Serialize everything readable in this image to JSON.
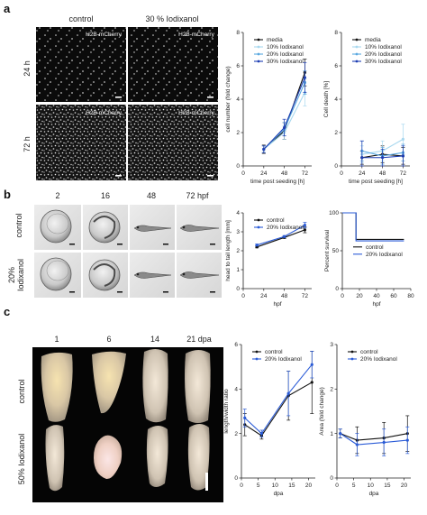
{
  "panels": {
    "a": {
      "letter": "a",
      "col_labels": [
        "control",
        "30 % Iodixanol"
      ],
      "row_labels": [
        "24 h",
        "72 h"
      ],
      "image_label": "H2B-mCherry"
    },
    "b": {
      "letter": "b",
      "col_labels": [
        "2",
        "16",
        "48",
        "72 hpf"
      ],
      "row_labels": [
        "control",
        "20%",
        "Iodixanol"
      ]
    },
    "c": {
      "letter": "c",
      "col_labels": [
        "1",
        "6",
        "14",
        "21 dpa"
      ],
      "row_labels": [
        "control",
        "50% Iodixanol"
      ]
    }
  },
  "chart_data": [
    {
      "id": "a-cell-number",
      "type": "line",
      "title": "",
      "xlabel": "time post seeding [h]",
      "ylabel": "cell number (fold change)",
      "xlim": [
        0,
        80
      ],
      "ylim": [
        0,
        8
      ],
      "xticks": [
        0,
        24,
        48,
        72
      ],
      "yticks": [
        0,
        2,
        4,
        6,
        8
      ],
      "legend": "top-left",
      "x": [
        24,
        48,
        72
      ],
      "series": [
        {
          "name": "media",
          "color": "#111111",
          "values": [
            1.0,
            2.1,
            5.6
          ],
          "err": [
            0.25,
            0.5,
            0.8
          ]
        },
        {
          "name": "10% Iodixanol",
          "color": "#a8d8ef",
          "values": [
            1.0,
            2.0,
            4.4
          ],
          "err": [
            0.2,
            0.4,
            0.8
          ]
        },
        {
          "name": "20% Iodixanol",
          "color": "#5aa8e0",
          "values": [
            1.0,
            2.2,
            5.0
          ],
          "err": [
            0.2,
            0.4,
            0.7
          ]
        },
        {
          "name": "30% Iodixanol",
          "color": "#1f3fb3",
          "values": [
            1.0,
            2.3,
            5.3
          ],
          "err": [
            0.2,
            0.5,
            0.9
          ]
        }
      ]
    },
    {
      "id": "a-cell-death",
      "type": "line",
      "title": "",
      "xlabel": "time post seeding [h]",
      "ylabel": "Cell death [%]",
      "xlim": [
        0,
        80
      ],
      "ylim": [
        0,
        8
      ],
      "xticks": [
        0,
        24,
        48,
        72
      ],
      "yticks": [
        0,
        2,
        4,
        6,
        8
      ],
      "legend": "top-left",
      "x": [
        24,
        48,
        72
      ],
      "series": [
        {
          "name": "media",
          "color": "#111111",
          "values": [
            0.5,
            0.7,
            0.6
          ],
          "err": [
            0.4,
            0.5,
            0.5
          ]
        },
        {
          "name": "10% Iodixanol",
          "color": "#a8d8ef",
          "values": [
            0.7,
            0.9,
            1.6
          ],
          "err": [
            0.5,
            0.6,
            0.9
          ]
        },
        {
          "name": "20% Iodixanol",
          "color": "#5aa8e0",
          "values": [
            0.9,
            0.6,
            0.8
          ],
          "err": [
            0.6,
            0.5,
            0.5
          ]
        },
        {
          "name": "30% Iodixanol",
          "color": "#1f3fb3",
          "values": [
            0.5,
            0.5,
            0.6
          ],
          "err": [
            1.0,
            0.5,
            0.6
          ]
        }
      ]
    },
    {
      "id": "b-length",
      "type": "line",
      "title": "",
      "xlabel": "hpf",
      "ylabel": "head to tail length [mm]",
      "xlim": [
        0,
        80
      ],
      "ylim": [
        0,
        4
      ],
      "xticks": [
        0,
        24,
        48,
        72
      ],
      "yticks": [
        0,
        1,
        2,
        3,
        4
      ],
      "legend": "top-left",
      "x": [
        16,
        48,
        72
      ],
      "series": [
        {
          "name": "control",
          "color": "#111111",
          "values": [
            2.2,
            2.7,
            3.1
          ],
          "err": [
            0.05,
            0.05,
            0.15
          ]
        },
        {
          "name": "20% Iodixanol",
          "color": "#2a5bd7",
          "values": [
            2.3,
            2.75,
            3.35
          ],
          "err": [
            0.05,
            0.05,
            0.15
          ]
        }
      ]
    },
    {
      "id": "b-survival",
      "type": "line",
      "title": "",
      "xlabel": "hpf",
      "ylabel": "Percent survival",
      "xlim": [
        0,
        80
      ],
      "ylim": [
        0,
        100
      ],
      "xticks": [
        0,
        20,
        40,
        60,
        80
      ],
      "yticks": [
        0,
        50,
        100
      ],
      "legend": "center",
      "series": [
        {
          "name": "control",
          "color": "#111111",
          "x": [
            0,
            16,
            16,
            72
          ],
          "values": [
            100,
            100,
            65,
            65
          ]
        },
        {
          "name": "20% Iodixanol",
          "color": "#2a5bd7",
          "x": [
            0,
            16,
            16,
            72
          ],
          "values": [
            100,
            100,
            63,
            63
          ]
        }
      ]
    },
    {
      "id": "c-ratio",
      "type": "line",
      "title": "",
      "xlabel": "dpa",
      "ylabel": "length/width ratio",
      "xlim": [
        0,
        22
      ],
      "ylim": [
        0,
        6
      ],
      "xticks": [
        0,
        5,
        10,
        15,
        20
      ],
      "yticks": [
        0,
        2,
        4,
        6
      ],
      "legend": "top-left",
      "x": [
        1,
        6,
        14,
        21
      ],
      "series": [
        {
          "name": "control",
          "color": "#111111",
          "values": [
            2.4,
            1.9,
            3.7,
            4.3
          ],
          "err": [
            0.5,
            0.15,
            1.1,
            1.4
          ]
        },
        {
          "name": "20% Iodixanol",
          "color": "#2a5bd7",
          "values": [
            2.7,
            2.0,
            3.8,
            5.1
          ],
          "err": [
            0.4,
            0.15,
            1.0,
            0.6
          ]
        }
      ]
    },
    {
      "id": "c-area",
      "type": "line",
      "title": "",
      "xlabel": "dpa",
      "ylabel": "Area (fold change)",
      "xlim": [
        0,
        22
      ],
      "ylim": [
        0,
        3
      ],
      "xticks": [
        0,
        5,
        10,
        15,
        20
      ],
      "yticks": [
        0,
        1,
        2,
        3
      ],
      "legend": "top-left",
      "x": [
        1,
        6,
        14,
        21
      ],
      "series": [
        {
          "name": "control",
          "color": "#111111",
          "values": [
            1.0,
            0.85,
            0.9,
            1.0
          ],
          "err": [
            0.1,
            0.3,
            0.35,
            0.4
          ]
        },
        {
          "name": "20% Iodixanol",
          "color": "#2a5bd7",
          "values": [
            1.0,
            0.75,
            0.8,
            0.85
          ],
          "err": [
            0.1,
            0.25,
            0.3,
            0.3
          ]
        }
      ]
    }
  ]
}
